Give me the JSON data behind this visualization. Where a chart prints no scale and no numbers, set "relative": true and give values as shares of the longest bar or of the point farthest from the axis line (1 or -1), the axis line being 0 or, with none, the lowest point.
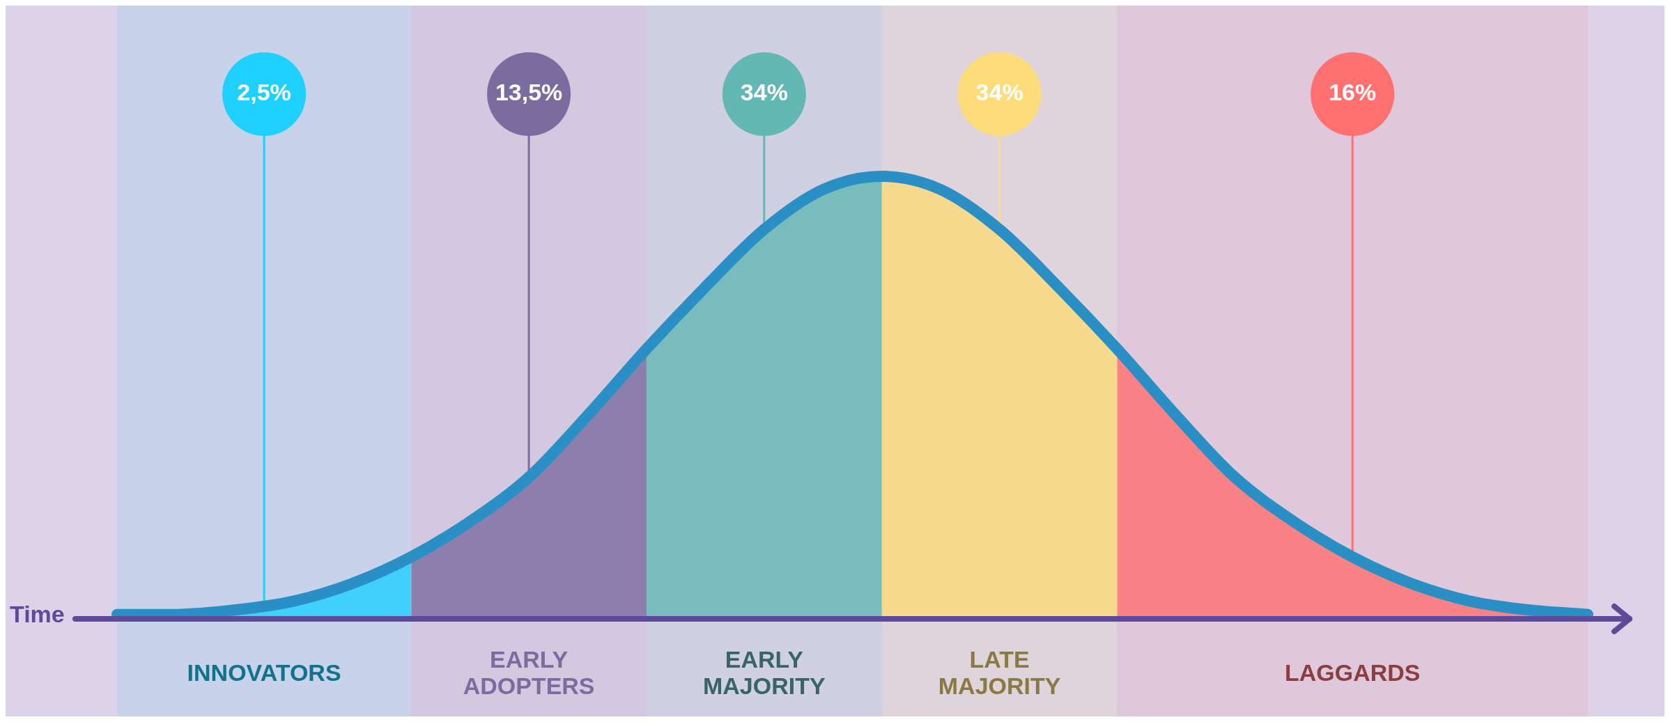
{
  "chart_data": {
    "type": "area",
    "relative": true,
    "xlabel": "Time",
    "legend": false,
    "categories": [
      null,
      null,
      null,
      null,
      null,
      null,
      null,
      null,
      null,
      null,
      null,
      null,
      null,
      null,
      null,
      null,
      null,
      null,
      null,
      null,
      null,
      null,
      null,
      null,
      null,
      null
    ],
    "series": [
      {
        "name": "INNOVATORS",
        "color": "#1fd0ff",
        "values": [
          0.01,
          0.01,
          0.02,
          0.04,
          0.08,
          0.14,
          null,
          null,
          null,
          null,
          null,
          null,
          null,
          null,
          null,
          null,
          null,
          null,
          null,
          null,
          null,
          null,
          null,
          null,
          null,
          null
        ]
      },
      {
        "name": "EARLY ADOPTERS",
        "color": "#7b6ca0",
        "values": [
          null,
          null,
          null,
          null,
          null,
          0.14,
          0.22,
          0.32,
          0.46,
          0.61,
          null,
          null,
          null,
          null,
          null,
          null,
          null,
          null,
          null,
          null,
          null,
          null,
          null,
          null,
          null,
          null
        ]
      },
      {
        "name": "EARLY MAJORITY",
        "color": "#63b7b5",
        "values": [
          null,
          null,
          null,
          null,
          null,
          null,
          null,
          null,
          null,
          0.61,
          0.75,
          0.88,
          0.97,
          1,
          null,
          null,
          null,
          null,
          null,
          null,
          null,
          null,
          null,
          null,
          null,
          null
        ]
      },
      {
        "name": "LATE MAJORITY",
        "color": "#fddc7a",
        "values": [
          null,
          null,
          null,
          null,
          null,
          null,
          null,
          null,
          null,
          null,
          null,
          null,
          null,
          1,
          0.97,
          0.88,
          0.75,
          0.61,
          null,
          null,
          null,
          null,
          null,
          null,
          null,
          null
        ]
      },
      {
        "name": "LAGGARDS",
        "color": "#ff7070",
        "values": [
          null,
          null,
          null,
          null,
          null,
          null,
          null,
          null,
          null,
          null,
          null,
          null,
          null,
          null,
          null,
          null,
          null,
          0.61,
          0.46,
          0.32,
          0.22,
          0.14,
          0.08,
          0.04,
          0.02,
          0.01
        ]
      },
      {
        "type": "line",
        "color": "#2a8fc4",
        "values": [
          0.01,
          0.01,
          0.02,
          0.04,
          0.08,
          0.14,
          0.22,
          0.32,
          0.46,
          0.61,
          0.75,
          0.88,
          0.97,
          1,
          0.97,
          0.88,
          0.75,
          0.61,
          0.46,
          0.32,
          0.22,
          0.14,
          0.08,
          0.04,
          0.02,
          0.01
        ]
      }
    ],
    "annotations": [
      "2,5%",
      "13,5%",
      "34%",
      "34%",
      "16%"
    ]
  }
}
